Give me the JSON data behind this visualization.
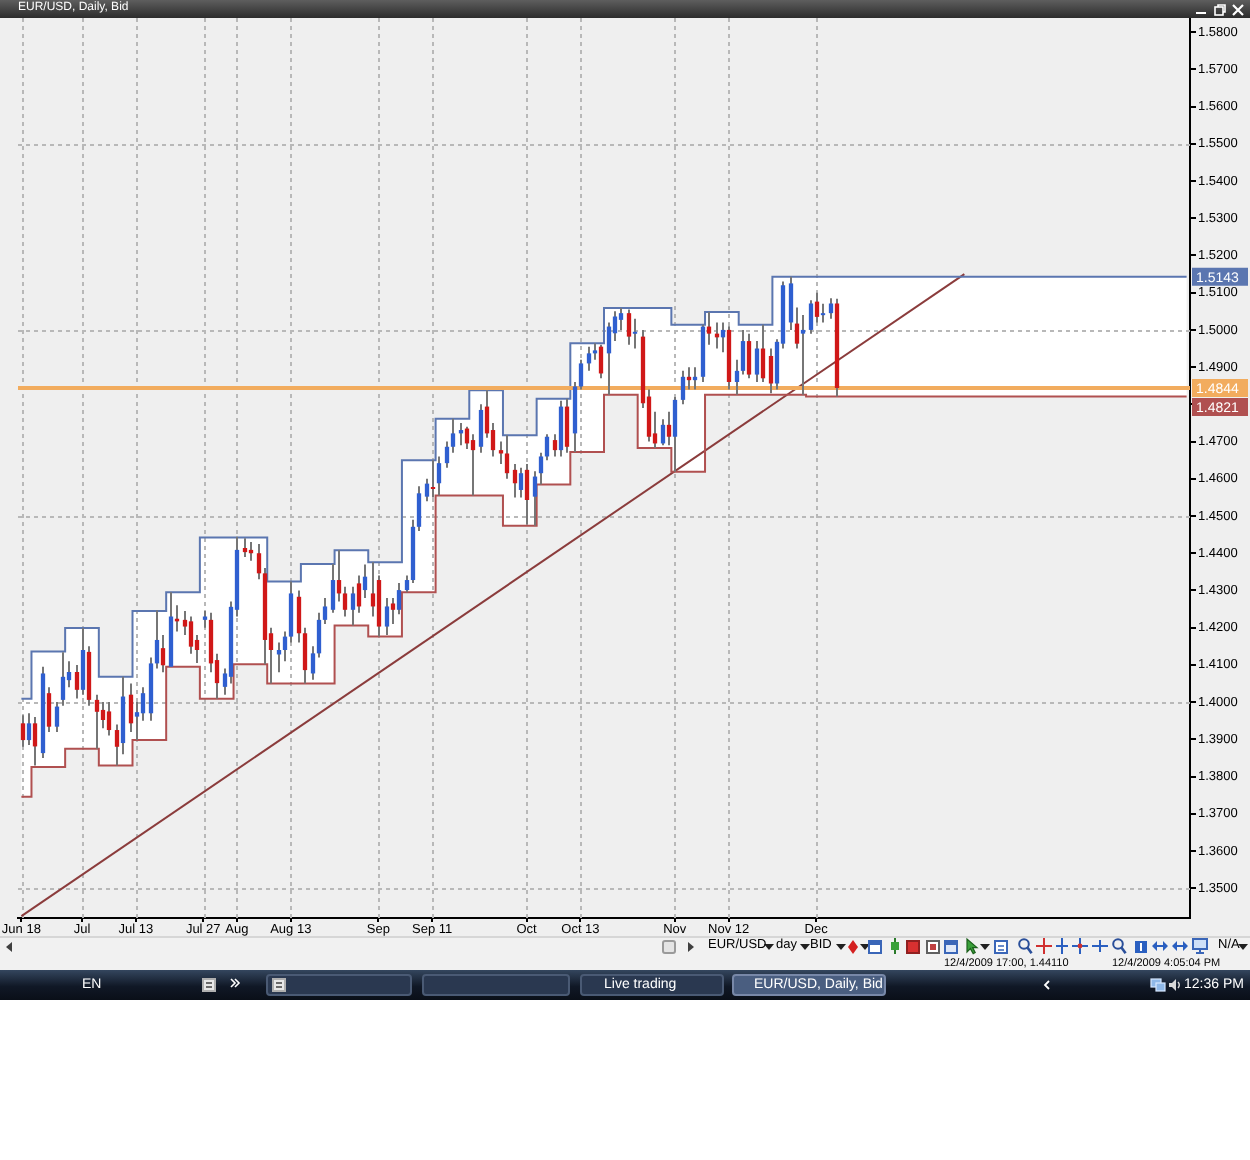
{
  "chart_data": {
    "type": "candlestick",
    "title": "EUR/USD, Daily, Bid",
    "categories": [
      "Jun 18",
      null,
      null,
      null,
      null,
      null,
      null,
      null,
      null,
      "Jul",
      null,
      null,
      null,
      null,
      null,
      null,
      null,
      "Jul 13",
      null,
      null,
      null,
      null,
      null,
      null,
      null,
      null,
      null,
      "Jul 27",
      null,
      null,
      null,
      null,
      "Aug",
      null,
      null,
      null,
      null,
      null,
      null,
      null,
      "Aug 13",
      null,
      null,
      null,
      null,
      null,
      null,
      null,
      null,
      null,
      null,
      null,
      null,
      "Sep",
      null,
      null,
      null,
      null,
      null,
      null,
      null,
      "Sep 11",
      null,
      null,
      null,
      null,
      null,
      null,
      null,
      null,
      null,
      null,
      null,
      null,
      null,
      "Oct",
      null,
      null,
      null,
      null,
      null,
      null,
      null,
      "Oct 13",
      null,
      null,
      null,
      null,
      null,
      null,
      null,
      null,
      null,
      null,
      null,
      null,
      null,
      "Nov",
      null,
      null,
      null,
      null,
      null,
      null,
      null,
      "Nov 12",
      null,
      null,
      null,
      null,
      null,
      null,
      null,
      null,
      null,
      null,
      null,
      null,
      "Dec",
      null,
      null,
      null,
      null,
      null,
      null,
      null,
      null,
      null,
      null,
      null,
      null,
      null,
      null,
      null,
      null,
      null,
      null,
      null,
      null,
      null,
      null,
      null,
      null,
      null,
      null,
      null,
      null,
      null,
      null,
      null,
      null,
      null,
      null,
      null,
      null,
      null,
      null,
      null,
      null,
      null,
      null,
      null,
      null,
      null,
      null,
      null,
      null,
      null,
      null,
      null,
      null,
      null,
      null,
      null
    ],
    "ohlc": [
      [
        1.3943,
        1.3965,
        1.388,
        1.3898
      ],
      [
        1.3898,
        1.397,
        1.3885,
        1.3943
      ],
      [
        1.3943,
        1.396,
        1.383,
        1.3881
      ],
      [
        1.3863,
        1.4095,
        1.385,
        1.4077
      ],
      [
        1.4024,
        1.404,
        1.392,
        1.3934
      ],
      [
        1.3934,
        1.4,
        1.392,
        1.3988
      ],
      [
        1.4006,
        1.4134,
        1.399,
        1.4068
      ],
      [
        1.4059,
        1.411,
        1.404,
        1.4081
      ],
      [
        1.4081,
        1.41,
        1.401,
        1.4033
      ],
      [
        1.4033,
        1.4199,
        1.402,
        1.414
      ],
      [
        1.4135,
        1.415,
        1.399,
        1.4006
      ],
      [
        1.4006,
        1.402,
        1.3875,
        1.3974
      ],
      [
        1.3979,
        1.4,
        1.393,
        1.3952
      ],
      [
        1.3975,
        1.4,
        1.391,
        1.3925
      ],
      [
        1.3925,
        1.394,
        1.383,
        1.388
      ],
      [
        1.389,
        1.4068,
        1.386,
        1.4015
      ],
      [
        1.402,
        1.405,
        1.392,
        1.3943
      ],
      [
        1.3961,
        1.4,
        1.3898,
        1.3973
      ],
      [
        1.397,
        1.404,
        1.395,
        1.4024
      ],
      [
        1.397,
        1.412,
        1.395,
        1.4104
      ],
      [
        1.4104,
        1.4247,
        1.409,
        1.4167
      ],
      [
        1.4145,
        1.418,
        1.408,
        1.4099
      ],
      [
        1.4095,
        1.4295,
        1.4095,
        1.423
      ],
      [
        1.4224,
        1.426,
        1.419,
        1.4217
      ],
      [
        1.4221,
        1.4245,
        1.418,
        1.4203
      ],
      [
        1.4217,
        1.423,
        1.413,
        1.4149
      ],
      [
        1.4167,
        1.418,
        1.4105,
        1.414
      ],
      [
        1.4221,
        1.4245,
        1.42,
        1.423
      ],
      [
        1.4221,
        1.424,
        1.408,
        1.4104
      ],
      [
        1.4113,
        1.413,
        1.4009,
        1.4051
      ],
      [
        1.4041,
        1.409,
        1.402,
        1.4077
      ],
      [
        1.4068,
        1.427,
        1.405,
        1.4256
      ],
      [
        1.4248,
        1.4444,
        1.423,
        1.4409
      ],
      [
        1.4414,
        1.444,
        1.439,
        1.4403
      ],
      [
        1.4409,
        1.443,
        1.438,
        1.44
      ],
      [
        1.44,
        1.4425,
        1.433,
        1.4346
      ],
      [
        1.4346,
        1.436,
        1.4102,
        1.4167
      ],
      [
        1.4185,
        1.42,
        1.405,
        1.414
      ],
      [
        1.4128,
        1.416,
        1.408,
        1.414
      ],
      [
        1.414,
        1.419,
        1.411,
        1.4176
      ],
      [
        1.4176,
        1.4324,
        1.416,
        1.4292
      ],
      [
        1.4283,
        1.43,
        1.416,
        1.4185
      ],
      [
        1.4185,
        1.42,
        1.405,
        1.4086
      ],
      [
        1.4077,
        1.415,
        1.406,
        1.4131
      ],
      [
        1.4131,
        1.424,
        1.412,
        1.4221
      ],
      [
        1.4221,
        1.428,
        1.421,
        1.4257
      ],
      [
        1.4248,
        1.4371,
        1.424,
        1.4328
      ],
      [
        1.4328,
        1.4408,
        1.427,
        1.4292
      ],
      [
        1.4292,
        1.431,
        1.423,
        1.4248
      ],
      [
        1.4248,
        1.431,
        1.4206,
        1.4292
      ],
      [
        1.4319,
        1.434,
        1.424,
        1.4257
      ],
      [
        1.4301,
        1.437,
        1.428,
        1.4337
      ],
      [
        1.4292,
        1.4376,
        1.423,
        1.4257
      ],
      [
        1.4328,
        1.434,
        1.4176,
        1.4203
      ],
      [
        1.4203,
        1.428,
        1.418,
        1.4257
      ],
      [
        1.4265,
        1.428,
        1.421,
        1.4248
      ],
      [
        1.4248,
        1.432,
        1.4236,
        1.4301
      ],
      [
        1.4301,
        1.434,
        1.4295,
        1.4328
      ],
      [
        1.4328,
        1.449,
        1.432,
        1.4471
      ],
      [
        1.4471,
        1.458,
        1.446,
        1.4561
      ],
      [
        1.4552,
        1.46,
        1.454,
        1.4587
      ],
      [
        1.4578,
        1.465,
        1.455,
        1.4575
      ],
      [
        1.4588,
        1.466,
        1.4555,
        1.4642
      ],
      [
        1.4642,
        1.47,
        1.463,
        1.4686
      ],
      [
        1.4686,
        1.4761,
        1.467,
        1.4722
      ],
      [
        1.4722,
        1.475,
        1.469,
        1.4731
      ],
      [
        1.4735,
        1.474,
        1.468,
        1.4695
      ],
      [
        1.4704,
        1.472,
        1.4555,
        1.4677
      ],
      [
        1.4686,
        1.48,
        1.467,
        1.4785
      ],
      [
        1.4794,
        1.4838,
        1.471,
        1.4722
      ],
      [
        1.4731,
        1.475,
        1.466,
        1.4677
      ],
      [
        1.4677,
        1.47,
        1.464,
        1.4668
      ],
      [
        1.4668,
        1.4717,
        1.46,
        1.4615
      ],
      [
        1.4624,
        1.464,
        1.455,
        1.4588
      ],
      [
        1.457,
        1.463,
        1.455,
        1.4615
      ],
      [
        1.4624,
        1.464,
        1.4477,
        1.4543
      ],
      [
        1.4552,
        1.462,
        1.4474,
        1.4606
      ],
      [
        1.4615,
        1.467,
        1.4585,
        1.466
      ],
      [
        1.466,
        1.472,
        1.465,
        1.4713
      ],
      [
        1.4704,
        1.472,
        1.466,
        1.4677
      ],
      [
        1.4677,
        1.481,
        1.466,
        1.4794
      ],
      [
        1.4794,
        1.4815,
        1.467,
        1.4686
      ],
      [
        1.4722,
        1.486,
        1.4672,
        1.4848
      ],
      [
        1.4848,
        1.492,
        1.484,
        1.491
      ],
      [
        1.491,
        1.4955,
        1.489,
        1.4937
      ],
      [
        1.4937,
        1.4964,
        1.492,
        1.4945
      ],
      [
        1.4955,
        1.496,
        1.487,
        1.4883
      ],
      [
        1.4937,
        1.502,
        1.4826,
        1.5009
      ],
      [
        1.4991,
        1.505,
        1.497,
        1.5036
      ],
      [
        1.5027,
        1.5059,
        1.5,
        1.5045
      ],
      [
        1.5045,
        1.5055,
        1.496,
        1.4982
      ],
      [
        1.4991,
        1.503,
        1.495,
        1.4995
      ],
      [
        1.4982,
        1.5,
        1.479,
        1.4803
      ],
      [
        1.4821,
        1.484,
        1.47,
        1.4713
      ],
      [
        1.4722,
        1.478,
        1.4683,
        1.4695
      ],
      [
        1.4695,
        1.476,
        1.469,
        1.4745
      ],
      [
        1.4745,
        1.478,
        1.469,
        1.4713
      ],
      [
        1.4713,
        1.482,
        1.4619,
        1.4812
      ],
      [
        1.4812,
        1.489,
        1.48,
        1.4874
      ],
      [
        1.4874,
        1.49,
        1.484,
        1.4865
      ],
      [
        1.4865,
        1.49,
        1.484,
        1.4874
      ],
      [
        1.4874,
        1.5014,
        1.486,
        1.5009
      ],
      [
        1.5009,
        1.5048,
        1.496,
        1.499
      ],
      [
        1.499,
        1.502,
        1.495,
        1.498
      ],
      [
        1.498,
        1.502,
        1.494,
        1.5
      ],
      [
        1.5,
        1.501,
        1.484,
        1.486
      ],
      [
        1.486,
        1.492,
        1.4826,
        1.489
      ],
      [
        1.489,
        1.5,
        1.488,
        1.497
      ],
      [
        1.497,
        1.499,
        1.487,
        1.488
      ],
      [
        1.488,
        1.497,
        1.486,
        1.495
      ],
      [
        1.495,
        1.5014,
        1.486,
        1.487
      ],
      [
        1.493,
        1.495,
        1.483,
        1.4856
      ],
      [
        1.4856,
        1.4975,
        1.484,
        1.4968
      ],
      [
        1.4963,
        1.513,
        1.495,
        1.512
      ],
      [
        1.502,
        1.5143,
        1.5,
        1.5125
      ],
      [
        1.5017,
        1.506,
        1.495,
        1.4963
      ],
      [
        1.499,
        1.504,
        1.4826,
        1.5
      ],
      [
        1.5,
        1.508,
        1.499,
        1.5071
      ],
      [
        1.5076,
        1.51,
        1.502,
        1.5035
      ],
      [
        1.504,
        1.507,
        1.502,
        1.5045
      ],
      [
        1.5045,
        1.5085,
        1.503,
        1.5071
      ],
      [
        1.5071,
        1.5084,
        1.4821,
        1.4844
      ],
      null,
      null,
      null,
      null,
      null,
      null,
      null,
      null,
      null,
      null,
      null,
      null,
      null,
      null,
      null,
      null,
      null,
      null,
      null,
      null,
      null,
      null,
      null,
      null,
      null,
      null,
      null,
      null,
      null,
      null,
      null,
      null,
      null,
      null,
      null,
      null,
      null,
      null,
      null,
      null,
      null,
      null,
      null,
      null,
      null,
      null,
      null,
      null,
      null,
      null,
      null,
      null
    ],
    "colors": [
      "#d01818",
      "#2f5fd0",
      "#d01818",
      "#2f5fd0",
      "#d01818",
      "#2f5fd0",
      "#2f5fd0",
      "#2f5fd0",
      "#d01818",
      "#2f5fd0",
      "#d01818",
      "#d01818",
      "#d01818",
      "#d01818",
      "#d01818",
      "#2f5fd0",
      "#d01818",
      "#2f5fd0",
      "#2f5fd0",
      "#2f5fd0",
      "#2f5fd0",
      "#d01818",
      "#2f5fd0",
      "#d01818",
      "#d01818",
      "#d01818",
      "#d01818",
      "#2f5fd0",
      "#d01818",
      "#d01818",
      "#2f5fd0",
      "#2f5fd0",
      "#2f5fd0",
      "#d01818",
      "#d01818",
      "#d01818",
      "#d01818",
      "#d01818",
      "#2f5fd0",
      "#2f5fd0",
      "#2f5fd0",
      "#d01818",
      "#d01818",
      "#2f5fd0",
      "#2f5fd0",
      "#2f5fd0",
      "#2f5fd0",
      "#d01818",
      "#d01818",
      "#2f5fd0",
      "#d01818",
      "#2f5fd0",
      "#d01818",
      "#d01818",
      "#2f5fd0",
      "#d01818",
      "#2f5fd0",
      "#2f5fd0",
      "#2f5fd0",
      "#2f5fd0",
      "#2f5fd0",
      "#d01818",
      "#2f5fd0",
      "#2f5fd0",
      "#2f5fd0",
      "#2f5fd0",
      "#d01818",
      "#d01818",
      "#2f5fd0",
      "#d01818",
      "#d01818",
      "#d01818",
      "#d01818",
      "#d01818",
      "#2f5fd0",
      "#d01818",
      "#2f5fd0",
      "#2f5fd0",
      "#2f5fd0",
      "#d01818",
      "#2f5fd0",
      "#d01818",
      "#2f5fd0",
      "#2f5fd0",
      "#2f5fd0",
      "#2f5fd0",
      "#d01818",
      "#2f5fd0",
      "#2f5fd0",
      "#2f5fd0",
      "#d01818",
      "#2f5fd0",
      "#d01818",
      "#d01818",
      "#d01818",
      "#2f5fd0",
      "#d01818",
      "#2f5fd0",
      "#2f5fd0",
      "#d01818",
      "#2f5fd0",
      "#2f5fd0",
      "#d01818",
      "#d01818",
      "#2f5fd0",
      "#d01818",
      "#2f5fd0",
      "#2f5fd0",
      "#d01818",
      "#2f5fd0",
      "#d01818",
      "#d01818",
      "#2f5fd0",
      "#2f5fd0",
      "#2f5fd0",
      "#d01818",
      "#2f5fd0",
      "#2f5fd0",
      "#d01818",
      "#2f5fd0",
      "#2f5fd0",
      "#d01818",
      null,
      null,
      null,
      null,
      null,
      null,
      null,
      null,
      null,
      null,
      null,
      null,
      null,
      null,
      null,
      null,
      null,
      null,
      null,
      null,
      null,
      null,
      null,
      null,
      null,
      null,
      null,
      null,
      null,
      null,
      null,
      null,
      null,
      null,
      null,
      null,
      null,
      null,
      null,
      null,
      null,
      null,
      null,
      null,
      null,
      null,
      null,
      null,
      null,
      null,
      null,
      null
    ],
    "series": [
      {
        "type": "step",
        "color": "#5b76b0",
        "values": [
          1.4009,
          1.4009,
          1.4136,
          1.4136,
          1.4136,
          1.4136,
          1.4136,
          1.4199,
          1.4199,
          1.4199,
          1.4199,
          1.4199,
          1.4068,
          1.4068,
          1.4068,
          1.4068,
          1.4068,
          1.4245,
          1.4245,
          1.4245,
          1.4245,
          1.4245,
          1.4295,
          1.4295,
          1.4295,
          1.4295,
          1.4295,
          1.4442,
          1.4442,
          1.4442,
          1.4442,
          1.4442,
          1.4442,
          1.4442,
          1.4442,
          1.4442,
          1.4442,
          1.4324,
          1.4324,
          1.4324,
          1.4324,
          1.4324,
          1.4371,
          1.4371,
          1.4371,
          1.4371,
          1.4371,
          1.4408,
          1.4408,
          1.4408,
          1.4408,
          1.4408,
          1.4376,
          1.4376,
          1.4376,
          1.4376,
          1.4376,
          1.465,
          1.465,
          1.465,
          1.465,
          1.465,
          1.4761,
          1.4761,
          1.4761,
          1.4761,
          1.4761,
          1.4838,
          1.4838,
          1.4838,
          1.4838,
          1.4838,
          1.4717,
          1.4717,
          1.4717,
          1.4717,
          1.4717,
          1.4815,
          1.4815,
          1.4815,
          1.4815,
          1.4815,
          1.4964,
          1.4964,
          1.4964,
          1.4964,
          1.4964,
          1.5059,
          1.5059,
          1.5059,
          1.5059,
          1.5059,
          1.5059,
          1.5059,
          1.5059,
          1.5059,
          1.5059,
          1.5014,
          1.5014,
          1.5014,
          1.5014,
          1.5014,
          1.5048,
          1.5048,
          1.5048,
          1.5048,
          1.5048,
          1.5014,
          1.5014,
          1.5014,
          1.5014,
          1.5014,
          1.5143,
          1.5143,
          1.5143,
          1.5143,
          1.5143,
          1.5143,
          1.5143,
          1.5143,
          1.5143,
          1.5143,
          1.5143,
          1.5143,
          1.5143,
          1.5143,
          1.5143,
          1.5143,
          1.5143,
          1.5143,
          1.5143,
          1.5143,
          1.5143,
          1.5143,
          1.5143,
          1.5143,
          1.5143,
          1.5143,
          1.5143,
          1.5143,
          1.5143,
          1.5143,
          1.5143,
          1.5143,
          1.5143,
          1.5143,
          1.5143,
          1.5143,
          1.5143,
          1.5143,
          1.5143,
          1.5143,
          1.5143,
          1.5143,
          1.5143,
          1.5143,
          1.5143,
          1.5143,
          1.5143,
          1.5143,
          1.5143,
          1.5143,
          1.5143,
          1.5143,
          1.5143,
          1.5143,
          1.5143,
          1.5143,
          1.5143,
          1.5143,
          1.5143,
          1.5143,
          1.5143,
          1.5143
        ],
        "upper": [
          1.4009,
          1.4009,
          1.4136,
          1.4136,
          1.4136,
          1.4136,
          1.4136,
          1.4199,
          1.4199,
          1.4199,
          1.4199,
          1.4199,
          1.4068,
          1.4068,
          1.4068,
          1.4068,
          1.4068,
          1.4245,
          1.4245,
          1.4245,
          1.4245,
          1.4245,
          1.4295,
          1.4295,
          1.4295,
          1.4295,
          1.4295,
          1.4442,
          1.4442,
          1.4442,
          1.4442,
          1.4442,
          1.4442,
          1.4442,
          1.4442,
          1.4442,
          1.4442,
          1.4324,
          1.4324,
          1.4324,
          1.4324,
          1.4324,
          1.4371,
          1.4371,
          1.4371,
          1.4371,
          1.4371,
          1.4408,
          1.4408,
          1.4408,
          1.4408,
          1.4408,
          1.4376,
          1.4376,
          1.4376,
          1.4376,
          1.4376,
          1.465,
          1.465,
          1.465,
          1.465,
          1.465,
          1.4761,
          1.4761,
          1.4761,
          1.4761,
          1.4761,
          1.4838,
          1.4838,
          1.4838,
          1.4838,
          1.4838,
          1.4717,
          1.4717,
          1.4717,
          1.4717,
          1.4717,
          1.4815,
          1.4815,
          1.4815,
          1.4815,
          1.4815,
          1.4964,
          1.4964,
          1.4964,
          1.4964,
          1.4964,
          1.5059,
          1.5059,
          1.5059,
          1.5059,
          1.5059,
          1.5059,
          1.5059,
          1.5059,
          1.5059,
          1.5059,
          1.5014,
          1.5014,
          1.5014,
          1.5014,
          1.5014,
          1.5048,
          1.5048,
          1.5048,
          1.5048,
          1.5048,
          1.5014,
          1.5014,
          1.5014,
          1.5014,
          1.5014,
          1.5143,
          1.5143,
          1.5143,
          1.5143,
          1.5143,
          1.5143,
          1.5143,
          1.5143,
          1.5143,
          1.5143,
          1.5143,
          1.5143,
          1.5143,
          1.5143,
          1.5143,
          1.5143,
          1.5143,
          1.5143,
          1.5143,
          1.5143,
          1.5143,
          1.5143,
          1.5143,
          1.5143,
          1.5143,
          1.5143,
          1.5143,
          1.5143,
          1.5143,
          1.5143,
          1.5143,
          1.5143,
          1.5143,
          1.5143,
          1.5143,
          1.5143,
          1.5143,
          1.5143,
          1.5143,
          1.5143,
          1.5143,
          1.5143,
          1.5143,
          1.5143,
          1.5143,
          1.5143,
          1.5143,
          1.5143,
          1.5143,
          1.5143,
          1.5143,
          1.5143,
          1.5143,
          1.5143,
          1.5143,
          1.5143,
          1.5143,
          1.5143,
          1.5143,
          1.5143,
          1.5143,
          1.5143
        ],
        "lower": [
          1.3746,
          1.3746,
          1.3826,
          1.3826,
          1.3826,
          1.3826,
          1.3826,
          1.3875,
          1.3875,
          1.3875,
          1.3875,
          1.3875,
          1.383,
          1.383,
          1.383,
          1.383,
          1.383,
          1.3898,
          1.3898,
          1.3898,
          1.3898,
          1.3898,
          1.4095,
          1.4095,
          1.4095,
          1.4095,
          1.4095,
          1.4009,
          1.4009,
          1.4009,
          1.4009,
          1.4009,
          1.4102,
          1.4102,
          1.4102,
          1.4102,
          1.4102,
          1.405,
          1.405,
          1.405,
          1.405,
          1.405,
          1.405,
          1.405,
          1.405,
          1.405,
          1.405,
          1.4206,
          1.4206,
          1.4206,
          1.4206,
          1.4206,
          1.4176,
          1.4176,
          1.4176,
          1.4176,
          1.4176,
          1.4295,
          1.4295,
          1.4295,
          1.4295,
          1.4295,
          1.4555,
          1.4555,
          1.4555,
          1.4555,
          1.4555,
          1.4555,
          1.4555,
          1.4555,
          1.4555,
          1.4555,
          1.4474,
          1.4474,
          1.4474,
          1.4474,
          1.4474,
          1.4585,
          1.4585,
          1.4585,
          1.4585,
          1.4585,
          1.4672,
          1.4672,
          1.4672,
          1.4672,
          1.4672,
          1.4826,
          1.4826,
          1.4826,
          1.4826,
          1.4826,
          1.4683,
          1.4683,
          1.4683,
          1.4683,
          1.4683,
          1.4619,
          1.4619,
          1.4619,
          1.4619,
          1.4619,
          1.4826,
          1.4826,
          1.4826,
          1.4826,
          1.4826,
          1.4826,
          1.4826,
          1.4826,
          1.4826,
          1.4826,
          1.4826,
          1.4826,
          1.4826,
          1.4826,
          1.4826,
          1.4821,
          1.4821,
          1.4821,
          1.4821,
          1.4821,
          1.4821,
          1.4821,
          1.4821,
          1.4821,
          1.4821,
          1.4821,
          1.4821,
          1.4821,
          1.4821,
          1.4821,
          1.4821,
          1.4821,
          1.4821,
          1.4821,
          1.4821,
          1.4821,
          1.4821,
          1.4821,
          1.4821,
          1.4821,
          1.4821,
          1.4821,
          1.4821,
          1.4821,
          1.4821,
          1.4821,
          1.4821,
          1.4821,
          1.4821,
          1.4821,
          1.4821,
          1.4821,
          1.4821,
          1.4821,
          1.4821,
          1.4821,
          1.4821,
          1.4821,
          1.4821,
          1.4821,
          1.4821,
          1.4821,
          1.4821,
          1.4821,
          1.4821,
          1.4821,
          1.4821,
          1.4821,
          1.4821,
          1.4821,
          1.4821,
          1.4821
        ],
        "value_labels": [
          null,
          null,
          null,
          null,
          null,
          null,
          null,
          null,
          null,
          null,
          null,
          null,
          null,
          null,
          null,
          null,
          null,
          null,
          null,
          null,
          null,
          null,
          null,
          null,
          null,
          null,
          null,
          null,
          null,
          null,
          null,
          null,
          null,
          null,
          null,
          null,
          null,
          null,
          null,
          null,
          null,
          null,
          null,
          null,
          null,
          null,
          null,
          null,
          null,
          null,
          null,
          null,
          null,
          null,
          null,
          null,
          null,
          null,
          null,
          null,
          null,
          null,
          null,
          null,
          null,
          null,
          null,
          null,
          null,
          null,
          null,
          null,
          null,
          null,
          null,
          null,
          null,
          null,
          null,
          null,
          null,
          null,
          null,
          null,
          null,
          null,
          null,
          null,
          null,
          null,
          null,
          null,
          null,
          null,
          null,
          null,
          null,
          null,
          null,
          null,
          null,
          null,
          null,
          null,
          null,
          null,
          null,
          null,
          null,
          null,
          null,
          null,
          null,
          null,
          null,
          null,
          null,
          null,
          null,
          null,
          null,
          null,
          null,
          null,
          null,
          null,
          null,
          null,
          null,
          null,
          null,
          null,
          null,
          null,
          null,
          null,
          null,
          null,
          null,
          null,
          null,
          null,
          null,
          null,
          null,
          null,
          null,
          null,
          null,
          null,
          null,
          null,
          null,
          null,
          null,
          null,
          null,
          null,
          null,
          null,
          null,
          null,
          null,
          null,
          null,
          null,
          null,
          null,
          null,
          null,
          null,
          null,
          null,
          "1.5143"
        ]
      },
      {
        "type": "step",
        "color": "#b05050",
        "values": [
          1.3746,
          1.3746,
          1.3826,
          1.3826,
          1.3826,
          1.3826,
          1.3826,
          1.3875,
          1.3875,
          1.3875,
          1.3875,
          1.3875,
          1.383,
          1.383,
          1.383,
          1.383,
          1.383,
          1.3898,
          1.3898,
          1.3898,
          1.3898,
          1.3898,
          1.4095,
          1.4095,
          1.4095,
          1.4095,
          1.4095,
          1.4009,
          1.4009,
          1.4009,
          1.4009,
          1.4009,
          1.4102,
          1.4102,
          1.4102,
          1.4102,
          1.4102,
          1.405,
          1.405,
          1.405,
          1.405,
          1.405,
          1.405,
          1.405,
          1.405,
          1.405,
          1.405,
          1.4206,
          1.4206,
          1.4206,
          1.4206,
          1.4206,
          1.4176,
          1.4176,
          1.4176,
          1.4176,
          1.4176,
          1.4295,
          1.4295,
          1.4295,
          1.4295,
          1.4295,
          1.4555,
          1.4555,
          1.4555,
          1.4555,
          1.4555,
          1.4555,
          1.4555,
          1.4555,
          1.4555,
          1.4555,
          1.4474,
          1.4474,
          1.4474,
          1.4474,
          1.4474,
          1.4585,
          1.4585,
          1.4585,
          1.4585,
          1.4585,
          1.4672,
          1.4672,
          1.4672,
          1.4672,
          1.4672,
          1.4826,
          1.4826,
          1.4826,
          1.4826,
          1.4826,
          1.4683,
          1.4683,
          1.4683,
          1.4683,
          1.4683,
          1.4619,
          1.4619,
          1.4619,
          1.4619,
          1.4619,
          1.4826,
          1.4826,
          1.4826,
          1.4826,
          1.4826,
          1.4826,
          1.4826,
          1.4826,
          1.4826,
          1.4826,
          1.4826,
          1.4826,
          1.4826,
          1.4826,
          1.4826,
          1.4821,
          1.4821,
          1.4821,
          1.4821,
          1.4821,
          1.4821,
          1.4821,
          1.4821,
          1.4821,
          1.4821,
          1.4821,
          1.4821,
          1.4821,
          1.4821,
          1.4821,
          1.4821,
          1.4821,
          1.4821,
          1.4821,
          1.4821,
          1.4821,
          1.4821,
          1.4821,
          1.4821,
          1.4821,
          1.4821,
          1.4821,
          1.4821,
          1.4821,
          1.4821,
          1.4821,
          1.4821,
          1.4821,
          1.4821,
          1.4821,
          1.4821,
          1.4821,
          1.4821,
          1.4821,
          1.4821,
          1.4821,
          1.4821,
          1.4821,
          1.4821,
          1.4821,
          1.4821,
          1.4821,
          1.4821,
          1.4821,
          1.4821,
          1.4821,
          1.4821,
          1.4821,
          1.4821,
          1.4821,
          1.4821,
          1.4821
        ],
        "value_labels": [
          null,
          null,
          null,
          null,
          null,
          null,
          null,
          null,
          null,
          null,
          null,
          null,
          null,
          null,
          null,
          null,
          null,
          null,
          null,
          null,
          null,
          null,
          null,
          null,
          null,
          null,
          null,
          null,
          null,
          null,
          null,
          null,
          null,
          null,
          null,
          null,
          null,
          null,
          null,
          null,
          null,
          null,
          null,
          null,
          null,
          null,
          null,
          null,
          null,
          null,
          null,
          null,
          null,
          null,
          null,
          null,
          null,
          null,
          null,
          null,
          null,
          null,
          null,
          null,
          null,
          null,
          null,
          null,
          null,
          null,
          null,
          null,
          null,
          null,
          null,
          null,
          null,
          null,
          null,
          null,
          null,
          null,
          null,
          null,
          null,
          null,
          null,
          null,
          null,
          null,
          null,
          null,
          null,
          null,
          null,
          null,
          null,
          null,
          null,
          null,
          null,
          null,
          null,
          null,
          null,
          null,
          null,
          null,
          null,
          null,
          null,
          null,
          null,
          null,
          null,
          null,
          null,
          null,
          null,
          null,
          null,
          null,
          null,
          null,
          null,
          null,
          null,
          null,
          null,
          null,
          null,
          null,
          null,
          null,
          null,
          null,
          null,
          null,
          null,
          null,
          null,
          null,
          null,
          null,
          null,
          null,
          null,
          null,
          null,
          null,
          null,
          null,
          null,
          null,
          null,
          null,
          null,
          null,
          null,
          null,
          null,
          null,
          null,
          null,
          null,
          null,
          null,
          null,
          null,
          null,
          null,
          null,
          null,
          "1.4821"
        ]
      },
      {
        "type": "line",
        "color": "#8b3c3c",
        "values": [
          1.3425,
          null,
          null,
          null,
          null,
          null,
          null,
          null,
          null,
          null,
          null,
          null,
          null,
          null,
          null,
          null,
          null,
          null,
          null,
          null,
          null,
          null,
          null,
          null,
          null,
          null,
          null,
          null,
          null,
          null,
          null,
          null,
          null,
          null,
          null,
          null,
          null,
          null,
          null,
          null,
          null,
          null,
          null,
          null,
          null,
          null,
          null,
          null,
          null,
          null,
          null,
          null,
          null,
          null,
          null,
          null,
          null,
          null,
          null,
          null,
          null,
          null,
          null,
          null,
          null,
          null,
          null,
          null,
          null,
          null,
          null,
          null,
          null,
          null,
          null,
          null,
          null,
          null,
          null,
          null,
          null,
          null,
          null,
          null,
          null,
          null,
          null,
          null,
          null,
          null,
          null,
          null,
          null,
          null,
          null,
          null,
          null,
          null,
          null,
          null,
          null,
          null,
          null,
          null,
          null,
          null,
          null,
          null,
          null,
          null,
          null,
          null,
          null,
          null,
          null,
          null,
          null,
          null,
          null,
          null,
          null,
          null,
          null,
          null,
          null,
          null,
          null,
          null,
          null,
          null,
          null,
          null,
          null,
          null,
          null,
          null,
          null,
          null,
          null,
          null,
          1.515,
          null,
          null,
          null,
          null,
          null,
          null,
          null,
          null,
          null,
          null,
          null,
          null,
          null,
          null,
          null,
          null,
          null,
          null,
          null,
          null,
          null,
          null,
          null,
          null,
          null,
          null,
          null,
          null,
          null,
          null,
          null,
          null,
          null
        ]
      }
    ],
    "ref_lines": [
      {
        "axis": "y",
        "value": 1.4844,
        "label": "1.4844",
        "color": "#f2ac5e"
      }
    ],
    "ylim": [
      1.342,
      1.5838
    ],
    "yticks": [
      {
        "value": 1.35,
        "label": "1.3500"
      },
      {
        "value": 1.36,
        "label": "1.3600"
      },
      {
        "value": 1.37,
        "label": "1.3700"
      },
      {
        "value": 1.38,
        "label": "1.3800"
      },
      {
        "value": 1.39,
        "label": "1.3900"
      },
      {
        "value": 1.4,
        "label": "1.4000"
      },
      {
        "value": 1.41,
        "label": "1.4100"
      },
      {
        "value": 1.42,
        "label": "1.4200"
      },
      {
        "value": 1.43,
        "label": "1.4300"
      },
      {
        "value": 1.44,
        "label": "1.4400"
      },
      {
        "value": 1.45,
        "label": "1.4500"
      },
      {
        "value": 1.46,
        "label": "1.4600"
      },
      {
        "value": 1.47,
        "label": "1.4700"
      },
      {
        "value": 1.48,
        "label": null
      },
      {
        "value": 1.49,
        "label": "1.4900"
      },
      {
        "value": 1.5,
        "label": "1.5000"
      },
      {
        "value": 1.51,
        "label": "1.5100"
      },
      {
        "value": 1.52,
        "label": "1.5200"
      },
      {
        "value": 1.53,
        "label": "1.5300"
      },
      {
        "value": 1.54,
        "label": "1.5400"
      },
      {
        "value": 1.55,
        "label": "1.5500"
      },
      {
        "value": 1.56,
        "label": "1.5600"
      },
      {
        "value": 1.57,
        "label": "1.5700"
      },
      {
        "value": 1.58,
        "label": "1.5800"
      }
    ],
    "grid": true,
    "annotations": [
      "EUR/USD",
      "day",
      "BID",
      "N/A",
      "12/4/2009 17:00, 1.44110",
      "12/4/2009 4:05:04 PM",
      "EN",
      "Live trading",
      "EUR/USD, Daily, Bid",
      "12:36 PM"
    ]
  }
}
